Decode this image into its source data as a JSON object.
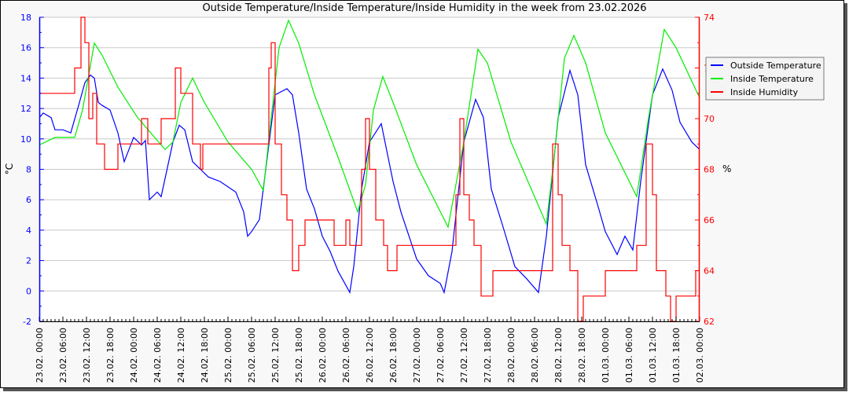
{
  "chart_data": {
    "type": "line",
    "title": "Outside Temperature/Inside Temperature/Inside Humidity in the week from 23.02.2026",
    "ylabel": "°C",
    "y2label": "%",
    "ylim": [
      -2,
      18
    ],
    "y2lim": [
      62,
      74
    ],
    "yticks": [
      "-2",
      "0",
      "2",
      "4",
      "6",
      "8",
      "10",
      "12",
      "14",
      "16",
      "18"
    ],
    "y2ticks": [
      "62",
      "64",
      "66",
      "68",
      "70",
      "72",
      "74"
    ],
    "x_unit": "hours since 23.02. 00:00",
    "xlim": [
      0,
      168
    ],
    "xticks": [
      "23.02. 00:00",
      "23.02. 06:00",
      "23.02. 12:00",
      "23.02. 18:00",
      "24.02. 00:00",
      "24.02. 06:00",
      "24.02. 12:00",
      "24.02. 18:00",
      "25.02. 00:00",
      "25.02. 06:00",
      "25.02. 12:00",
      "25.02. 18:00",
      "26.02. 00:00",
      "26.02. 06:00",
      "26.02. 12:00",
      "26.02. 18:00",
      "27.02. 00:00",
      "27.02. 06:00",
      "27.02. 12:00",
      "27.02. 18:00",
      "28.02. 00:00",
      "28.02. 06:00",
      "28.02. 12:00",
      "28.02. 18:00",
      "01.03. 00:00",
      "01.03. 06:00",
      "01.03. 12:00",
      "01.03. 18:00",
      "02.03. 00:00"
    ],
    "grid": true,
    "legend_position": "right",
    "series": [
      {
        "name": "Outside Temperature",
        "color": "#0000ff",
        "axis": "left",
        "step": false,
        "points": [
          [
            0,
            11.4
          ],
          [
            1,
            11.7
          ],
          [
            3,
            11.4
          ],
          [
            4,
            10.6
          ],
          [
            6,
            10.6
          ],
          [
            8,
            10.4
          ],
          [
            10,
            12.2
          ],
          [
            11.6,
            13.7
          ],
          [
            13,
            14.2
          ],
          [
            14,
            14.0
          ],
          [
            15,
            12.4
          ],
          [
            16,
            12.2
          ],
          [
            18,
            11.9
          ],
          [
            20,
            10.4
          ],
          [
            21.6,
            8.5
          ],
          [
            24,
            10.1
          ],
          [
            26,
            9.6
          ],
          [
            27,
            9.9
          ],
          [
            28,
            6.0
          ],
          [
            30,
            6.5
          ],
          [
            31,
            6.2
          ],
          [
            34,
            9.8
          ],
          [
            35.6,
            10.9
          ],
          [
            37,
            10.6
          ],
          [
            39,
            8.5
          ],
          [
            41,
            8.0
          ],
          [
            43,
            7.5
          ],
          [
            46,
            7.2
          ],
          [
            50,
            6.5
          ],
          [
            52,
            5.2
          ],
          [
            53,
            3.6
          ],
          [
            54,
            3.9
          ],
          [
            56,
            4.7
          ],
          [
            58,
            8.8
          ],
          [
            60,
            12.9
          ],
          [
            63,
            13.3
          ],
          [
            64.4,
            12.9
          ],
          [
            66,
            10.4
          ],
          [
            68,
            6.7
          ],
          [
            70,
            5.4
          ],
          [
            72,
            3.6
          ],
          [
            74,
            2.6
          ],
          [
            76,
            1.3
          ],
          [
            79,
            -0.1
          ],
          [
            80,
            1.6
          ],
          [
            82,
            6.7
          ],
          [
            84,
            9.8
          ],
          [
            87,
            11.0
          ],
          [
            90,
            7.2
          ],
          [
            92,
            5.2
          ],
          [
            96,
            2.1
          ],
          [
            99,
            1.0
          ],
          [
            102,
            0.5
          ],
          [
            103,
            -0.1
          ],
          [
            105,
            2.6
          ],
          [
            108,
            9.8
          ],
          [
            111,
            12.6
          ],
          [
            113,
            11.4
          ],
          [
            115,
            6.7
          ],
          [
            118,
            4.2
          ],
          [
            121,
            1.6
          ],
          [
            124,
            0.8
          ],
          [
            127,
            -0.1
          ],
          [
            129,
            3.6
          ],
          [
            132,
            11.4
          ],
          [
            135,
            14.5
          ],
          [
            137,
            12.9
          ],
          [
            139,
            8.3
          ],
          [
            142,
            5.7
          ],
          [
            144,
            3.9
          ],
          [
            147,
            2.4
          ],
          [
            149,
            3.6
          ],
          [
            151,
            2.7
          ],
          [
            153,
            7.2
          ],
          [
            156,
            12.9
          ],
          [
            158.6,
            14.6
          ],
          [
            161,
            13.2
          ],
          [
            163,
            11.1
          ],
          [
            166,
            9.8
          ],
          [
            168,
            9.3
          ]
        ]
      },
      {
        "name": "Inside Temperature",
        "color": "#00ee00",
        "axis": "left",
        "step": false,
        "points": [
          [
            0,
            9.6
          ],
          [
            4,
            10.1
          ],
          [
            9,
            10.1
          ],
          [
            11,
            11.9
          ],
          [
            14,
            16.3
          ],
          [
            16,
            15.5
          ],
          [
            20,
            13.4
          ],
          [
            25,
            11.4
          ],
          [
            32,
            9.3
          ],
          [
            34,
            9.8
          ],
          [
            36,
            12.4
          ],
          [
            39,
            14.0
          ],
          [
            42,
            12.4
          ],
          [
            48,
            9.8
          ],
          [
            54,
            8.0
          ],
          [
            57,
            6.6
          ],
          [
            59,
            11.4
          ],
          [
            61,
            16.0
          ],
          [
            63.4,
            17.8
          ],
          [
            66,
            16.3
          ],
          [
            70,
            12.9
          ],
          [
            76,
            8.8
          ],
          [
            81,
            5.2
          ],
          [
            83,
            7.0
          ],
          [
            85,
            11.9
          ],
          [
            87.4,
            14.1
          ],
          [
            90,
            12.4
          ],
          [
            96,
            8.3
          ],
          [
            104,
            4.2
          ],
          [
            108,
            9.8
          ],
          [
            111.6,
            15.9
          ],
          [
            114,
            15.0
          ],
          [
            120,
            9.8
          ],
          [
            129,
            4.4
          ],
          [
            131,
            8.8
          ],
          [
            133.6,
            15.3
          ],
          [
            136,
            16.8
          ],
          [
            139,
            15.0
          ],
          [
            144,
            10.4
          ],
          [
            152,
            6.2
          ],
          [
            155,
            11.4
          ],
          [
            159,
            17.2
          ],
          [
            162,
            16.0
          ],
          [
            168,
            12.7
          ]
        ]
      },
      {
        "name": "Inside Humidity",
        "color": "#ff0000",
        "axis": "right",
        "step": true,
        "points": [
          [
            0,
            71
          ],
          [
            9,
            72
          ],
          [
            10.6,
            74
          ],
          [
            11.6,
            73
          ],
          [
            12.6,
            70
          ],
          [
            13.6,
            71
          ],
          [
            14.6,
            69
          ],
          [
            16.6,
            68
          ],
          [
            20,
            69
          ],
          [
            26,
            70
          ],
          [
            27.6,
            69
          ],
          [
            31,
            70
          ],
          [
            34.6,
            72
          ],
          [
            36,
            71
          ],
          [
            39,
            69
          ],
          [
            41,
            68
          ],
          [
            41.6,
            69
          ],
          [
            57.6,
            69
          ],
          [
            58.4,
            72
          ],
          [
            59,
            73
          ],
          [
            60,
            69
          ],
          [
            61.6,
            67
          ],
          [
            63,
            66
          ],
          [
            64.4,
            64
          ],
          [
            66,
            65
          ],
          [
            67.6,
            66
          ],
          [
            75,
            65
          ],
          [
            78,
            66
          ],
          [
            79,
            65
          ],
          [
            82,
            68
          ],
          [
            83,
            70
          ],
          [
            84,
            68
          ],
          [
            85.6,
            66
          ],
          [
            87.6,
            65
          ],
          [
            88.6,
            64
          ],
          [
            91,
            65
          ],
          [
            105,
            65
          ],
          [
            106,
            67
          ],
          [
            107,
            70
          ],
          [
            108,
            67
          ],
          [
            109.4,
            66
          ],
          [
            110.6,
            65
          ],
          [
            112.4,
            63
          ],
          [
            115.4,
            64
          ],
          [
            129,
            64
          ],
          [
            130.6,
            69
          ],
          [
            132,
            67
          ],
          [
            133,
            65
          ],
          [
            135,
            64
          ],
          [
            137,
            62
          ],
          [
            138.4,
            63
          ],
          [
            144,
            64
          ],
          [
            152,
            65
          ],
          [
            154.4,
            69
          ],
          [
            156,
            67
          ],
          [
            157,
            64
          ],
          [
            159.4,
            63
          ],
          [
            160.6,
            62
          ],
          [
            162,
            63
          ],
          [
            167,
            64
          ],
          [
            168,
            64
          ]
        ]
      }
    ]
  }
}
